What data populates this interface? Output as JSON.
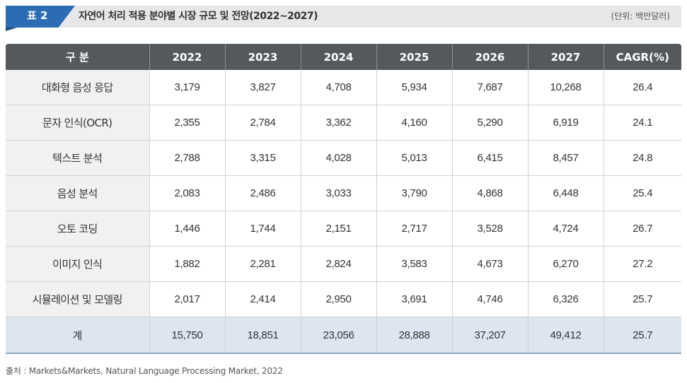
{
  "title": {
    "badge": "표 2",
    "text": "자연어 처리 적용 분야별 시장 규모 및 전망(2022~2027)",
    "unit": "(단위: 백만달러)"
  },
  "table": {
    "headers": [
      "구 분",
      "2022",
      "2023",
      "2024",
      "2025",
      "2026",
      "2027",
      "CAGR(%)"
    ],
    "rows": [
      [
        "대화형 음성 응답",
        "3,179",
        "3,827",
        "4,708",
        "5,934",
        "7,687",
        "10,268",
        "26.4"
      ],
      [
        "문자 인식(OCR)",
        "2,355",
        "2,784",
        "3,362",
        "4,160",
        "5,290",
        "6,919",
        "24.1"
      ],
      [
        "텍스트 분석",
        "2,788",
        "3,315",
        "4,028",
        "5,013",
        "6,415",
        "8,457",
        "24.8"
      ],
      [
        "음성 분석",
        "2,083",
        "2,486",
        "3,033",
        "3,790",
        "4,868",
        "6,448",
        "25.4"
      ],
      [
        "오토 코딩",
        "1,446",
        "1,744",
        "2,151",
        "2,717",
        "3,528",
        "4,724",
        "26.7"
      ],
      [
        "이미지 인식",
        "1,882",
        "2,281",
        "2,824",
        "3,583",
        "4,673",
        "6,270",
        "27.2"
      ],
      [
        "시뮬레이션 및 모델링",
        "2,017",
        "2,414",
        "2,950",
        "3,691",
        "4,746",
        "6,326",
        "25.7"
      ]
    ],
    "total": [
      "계",
      "15,750",
      "18,851",
      "23,056",
      "28,888",
      "37,207",
      "49,412",
      "25.7"
    ]
  },
  "source": "출처 : Markets&Markets, Natural Language Processing Market, 2022",
  "colors": {
    "badge": "#2b6cb5",
    "header_bg": "#56595c",
    "total_row_bg": "#dde5f1",
    "label_col_bg": "#f1f1f2"
  }
}
